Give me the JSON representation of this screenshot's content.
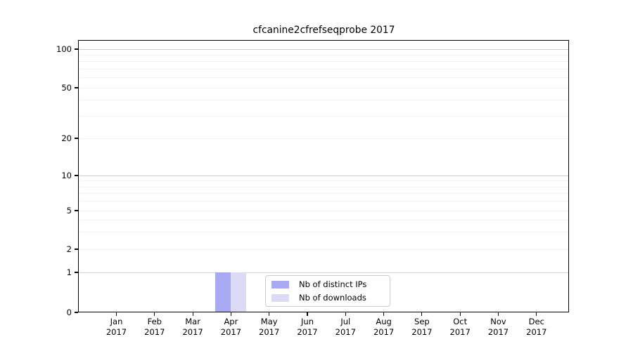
{
  "chart_data": {
    "type": "bar",
    "title": "cfcanine2cfrefseqprobe 2017",
    "x_axis": {
      "months": [
        "Jan",
        "Feb",
        "Mar",
        "Apr",
        "May",
        "Jun",
        "Jul",
        "Aug",
        "Sep",
        "Oct",
        "Nov",
        "Dec"
      ],
      "year": "2017"
    },
    "y_axis": {
      "scale": "symlog",
      "tick_labels": [
        "0",
        "1",
        "2",
        "5",
        "10",
        "20",
        "50",
        "100"
      ],
      "tick_values": [
        0,
        1,
        2,
        5,
        10,
        20,
        50,
        100
      ],
      "minor_gridlines": [
        2,
        3,
        4,
        5,
        6,
        7,
        8,
        9,
        20,
        30,
        40,
        50,
        60,
        70,
        80,
        90
      ],
      "major_gridlines": [
        1,
        10,
        100
      ],
      "range": [
        0,
        117
      ],
      "grid": true
    },
    "series": [
      {
        "name": "Nb of distinct IPs",
        "color": "#a9a9f4",
        "values": [
          0,
          0,
          0,
          1,
          0,
          0,
          0,
          0,
          0,
          0,
          0,
          0
        ]
      },
      {
        "name": "Nb of downloads",
        "color": "#dbdbf8",
        "values": [
          0,
          0,
          0,
          1,
          0,
          0,
          0,
          0,
          0,
          0,
          0,
          0
        ]
      }
    ],
    "legend": {
      "position": "bottom-center",
      "entries": [
        "Nb of distinct IPs",
        "Nb of downloads"
      ]
    }
  },
  "colors": {
    "axis": "#000000",
    "grid_minor": "#f1f1f1",
    "grid_major": "#cfcfcf",
    "legend_border": "#cccccc",
    "text": "#000000"
  }
}
